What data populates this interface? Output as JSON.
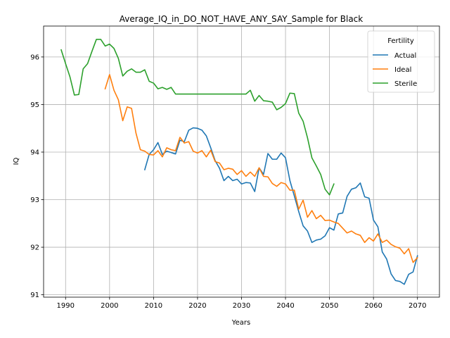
{
  "chart_data": {
    "type": "line",
    "title": "Average_IQ_in_DO_NOT_HAVE_ANY_SAY_Sample for Black",
    "xlabel": "Years",
    "ylabel": "IQ",
    "xlim": [
      1985,
      2075
    ],
    "ylim": [
      90.95,
      96.65
    ],
    "xticks": [
      1990,
      2000,
      2010,
      2020,
      2030,
      2040,
      2050,
      2060,
      2070
    ],
    "yticks": [
      91,
      92,
      93,
      94,
      95,
      96
    ],
    "grid": true,
    "legend": {
      "title": "Fertility",
      "placement": "top-right"
    },
    "series": [
      {
        "name": "Actual",
        "color": "#1f77b4",
        "x": [
          2008,
          2009,
          2010,
          2011,
          2012,
          2013,
          2014,
          2015,
          2016,
          2017,
          2018,
          2019,
          2020,
          2021,
          2022,
          2023,
          2024,
          2025,
          2026,
          2027,
          2028,
          2029,
          2030,
          2031,
          2032,
          2033,
          2034,
          2035,
          2036,
          2037,
          2038,
          2039,
          2040,
          2041,
          2042,
          2043,
          2044,
          2045,
          2046,
          2047,
          2048,
          2049,
          2050,
          2051,
          2052,
          2053,
          2054,
          2055,
          2056,
          2057,
          2058,
          2059,
          2060,
          2061,
          2062,
          2063,
          2064,
          2065,
          2066,
          2067,
          2068,
          2069,
          2070
        ],
        "y": [
          93.63,
          93.95,
          94.05,
          94.2,
          93.95,
          94.02,
          93.99,
          93.96,
          94.25,
          94.22,
          94.46,
          94.51,
          94.5,
          94.46,
          94.34,
          94.09,
          93.82,
          93.66,
          93.4,
          93.49,
          93.4,
          93.43,
          93.33,
          93.36,
          93.35,
          93.17,
          93.67,
          93.53,
          93.97,
          93.85,
          93.85,
          93.98,
          93.88,
          93.4,
          93.08,
          92.75,
          92.45,
          92.34,
          92.1,
          92.15,
          92.17,
          92.24,
          92.41,
          92.36,
          92.7,
          92.72,
          93.07,
          93.22,
          93.25,
          93.35,
          93.06,
          93.03,
          92.57,
          92.43,
          91.9,
          91.75,
          91.44,
          91.3,
          91.28,
          91.22,
          91.43,
          91.48,
          91.82
        ]
      },
      {
        "name": "Ideal",
        "color": "#ff7f0e",
        "x": [
          1999,
          2000,
          2001,
          2002,
          2003,
          2004,
          2005,
          2006,
          2007,
          2008,
          2009,
          2010,
          2011,
          2012,
          2013,
          2014,
          2015,
          2016,
          2017,
          2018,
          2019,
          2020,
          2021,
          2022,
          2023,
          2024,
          2025,
          2026,
          2027,
          2028,
          2029,
          2030,
          2031,
          2032,
          2033,
          2034,
          2035,
          2036,
          2037,
          2038,
          2039,
          2040,
          2041,
          2042,
          2043,
          2044,
          2045,
          2046,
          2047,
          2048,
          2049,
          2050,
          2051,
          2052,
          2053,
          2054,
          2055,
          2056,
          2057,
          2058,
          2059,
          2060,
          2061,
          2062,
          2063,
          2064,
          2065,
          2066,
          2067,
          2068,
          2069,
          2070
        ],
        "y": [
          95.33,
          95.63,
          95.3,
          95.1,
          94.66,
          94.95,
          94.92,
          94.4,
          94.05,
          94.02,
          93.95,
          93.94,
          94.03,
          93.9,
          94.09,
          94.05,
          94.03,
          94.31,
          94.19,
          94.22,
          94.02,
          93.98,
          94.03,
          93.9,
          94.04,
          93.8,
          93.77,
          93.63,
          93.66,
          93.64,
          93.53,
          93.61,
          93.49,
          93.58,
          93.49,
          93.67,
          93.49,
          93.48,
          93.34,
          93.28,
          93.36,
          93.33,
          93.2,
          93.2,
          92.8,
          92.99,
          92.63,
          92.77,
          92.6,
          92.67,
          92.56,
          92.57,
          92.53,
          92.5,
          92.4,
          92.3,
          92.34,
          92.28,
          92.25,
          92.1,
          92.2,
          92.13,
          92.28,
          92.1,
          92.15,
          92.06,
          92.01,
          91.98,
          91.86,
          91.97,
          91.68,
          91.78
        ]
      },
      {
        "name": "Sterile",
        "color": "#2ca02c",
        "x": [
          1989,
          1990,
          1991,
          1992,
          1993,
          1994,
          1995,
          1996,
          1997,
          1998,
          1999,
          2000,
          2001,
          2002,
          2003,
          2004,
          2005,
          2006,
          2007,
          2008,
          2009,
          2010,
          2011,
          2012,
          2013,
          2014,
          2015,
          2016,
          2017,
          2018,
          2019,
          2020,
          2021,
          2022,
          2023,
          2024,
          2025,
          2026,
          2027,
          2028,
          2029,
          2030,
          2031,
          2032,
          2033,
          2034,
          2035,
          2036,
          2037,
          2038,
          2039,
          2040,
          2041,
          2042,
          2043,
          2044,
          2045,
          2046,
          2047,
          2048,
          2049,
          2050,
          2051
        ],
        "y": [
          96.15,
          95.86,
          95.58,
          95.2,
          95.21,
          95.75,
          95.86,
          96.12,
          96.37,
          96.37,
          96.23,
          96.27,
          96.18,
          95.97,
          95.6,
          95.7,
          95.75,
          95.68,
          95.68,
          95.73,
          95.49,
          95.45,
          95.33,
          95.36,
          95.32,
          95.36,
          95.22,
          95.22,
          95.22,
          95.22,
          95.22,
          95.22,
          95.22,
          95.22,
          95.22,
          95.22,
          95.22,
          95.22,
          95.22,
          95.22,
          95.22,
          95.22,
          95.22,
          95.3,
          95.07,
          95.19,
          95.08,
          95.07,
          95.05,
          94.89,
          94.94,
          95.02,
          95.24,
          95.23,
          94.82,
          94.65,
          94.3,
          93.88,
          93.71,
          93.53,
          93.22,
          93.1,
          93.33
        ]
      }
    ]
  }
}
